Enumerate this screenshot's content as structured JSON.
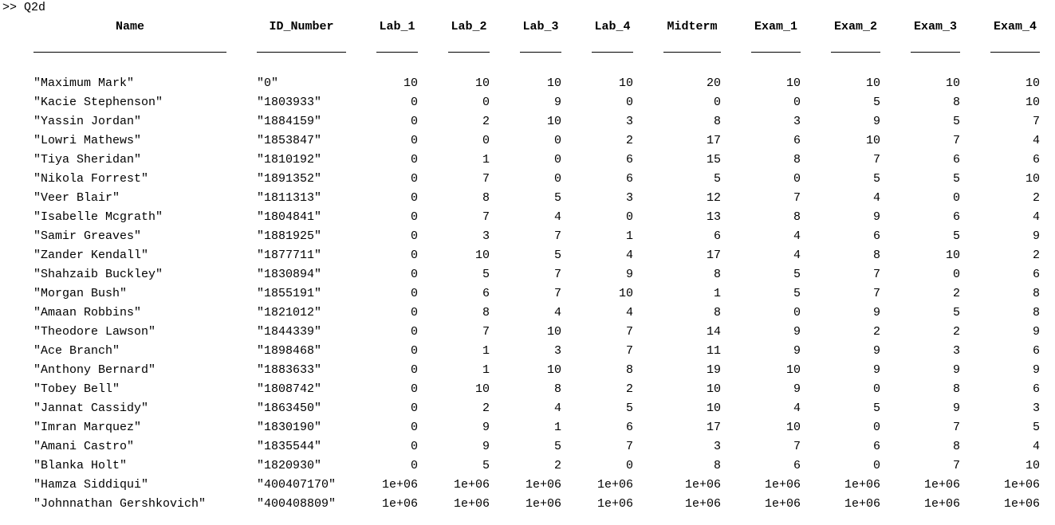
{
  "console": {
    "prompt": ">> ",
    "command": "Q2d"
  },
  "table": {
    "columns": [
      "Name",
      "ID_Number",
      "Lab_1",
      "Lab_2",
      "Lab_3",
      "Lab_4",
      "Midterm",
      "Exam_1",
      "Exam_2",
      "Exam_3",
      "Exam_4"
    ],
    "rows": [
      [
        "\"Maximum Mark\"",
        "\"0\"",
        "10",
        "10",
        "10",
        "10",
        "20",
        "10",
        "10",
        "10",
        "10"
      ],
      [
        "\"Kacie Stephenson\"",
        "\"1803933\"",
        "0",
        "0",
        "9",
        "0",
        "0",
        "0",
        "5",
        "8",
        "10"
      ],
      [
        "\"Yassin Jordan\"",
        "\"1884159\"",
        "0",
        "2",
        "10",
        "3",
        "8",
        "3",
        "9",
        "5",
        "7"
      ],
      [
        "\"Lowri Mathews\"",
        "\"1853847\"",
        "0",
        "0",
        "0",
        "2",
        "17",
        "6",
        "10",
        "7",
        "4"
      ],
      [
        "\"Tiya Sheridan\"",
        "\"1810192\"",
        "0",
        "1",
        "0",
        "6",
        "15",
        "8",
        "7",
        "6",
        "6"
      ],
      [
        "\"Nikola Forrest\"",
        "\"1891352\"",
        "0",
        "7",
        "0",
        "6",
        "5",
        "0",
        "5",
        "5",
        "10"
      ],
      [
        "\"Veer Blair\"",
        "\"1811313\"",
        "0",
        "8",
        "5",
        "3",
        "12",
        "7",
        "4",
        "0",
        "2"
      ],
      [
        "\"Isabelle Mcgrath\"",
        "\"1804841\"",
        "0",
        "7",
        "4",
        "0",
        "13",
        "8",
        "9",
        "6",
        "4"
      ],
      [
        "\"Samir Greaves\"",
        "\"1881925\"",
        "0",
        "3",
        "7",
        "1",
        "6",
        "4",
        "6",
        "5",
        "9"
      ],
      [
        "\"Zander Kendall\"",
        "\"1877711\"",
        "0",
        "10",
        "5",
        "4",
        "17",
        "4",
        "8",
        "10",
        "2"
      ],
      [
        "\"Shahzaib Buckley\"",
        "\"1830894\"",
        "0",
        "5",
        "7",
        "9",
        "8",
        "5",
        "7",
        "0",
        "6"
      ],
      [
        "\"Morgan Bush\"",
        "\"1855191\"",
        "0",
        "6",
        "7",
        "10",
        "1",
        "5",
        "7",
        "2",
        "8"
      ],
      [
        "\"Amaan Robbins\"",
        "\"1821012\"",
        "0",
        "8",
        "4",
        "4",
        "8",
        "0",
        "9",
        "5",
        "8"
      ],
      [
        "\"Theodore Lawson\"",
        "\"1844339\"",
        "0",
        "7",
        "10",
        "7",
        "14",
        "9",
        "2",
        "2",
        "9"
      ],
      [
        "\"Ace Branch\"",
        "\"1898468\"",
        "0",
        "1",
        "3",
        "7",
        "11",
        "9",
        "9",
        "3",
        "6"
      ],
      [
        "\"Anthony Bernard\"",
        "\"1883633\"",
        "0",
        "1",
        "10",
        "8",
        "19",
        "10",
        "9",
        "9",
        "9"
      ],
      [
        "\"Tobey Bell\"",
        "\"1808742\"",
        "0",
        "10",
        "8",
        "2",
        "10",
        "9",
        "0",
        "8",
        "6"
      ],
      [
        "\"Jannat Cassidy\"",
        "\"1863450\"",
        "0",
        "2",
        "4",
        "5",
        "10",
        "4",
        "5",
        "9",
        "3"
      ],
      [
        "\"Imran Marquez\"",
        "\"1830190\"",
        "0",
        "9",
        "1",
        "6",
        "17",
        "10",
        "0",
        "7",
        "5"
      ],
      [
        "\"Amani Castro\"",
        "\"1835544\"",
        "0",
        "9",
        "5",
        "7",
        "3",
        "7",
        "6",
        "8",
        "4"
      ],
      [
        "\"Blanka Holt\"",
        "\"1820930\"",
        "0",
        "5",
        "2",
        "0",
        "8",
        "6",
        "0",
        "7",
        "10"
      ],
      [
        "\"Hamza Siddiqui\"",
        "\"400407170\"",
        "1e+06",
        "1e+06",
        "1e+06",
        "1e+06",
        "1e+06",
        "1e+06",
        "1e+06",
        "1e+06",
        "1e+06"
      ],
      [
        "\"Johnnathan Gershkovich\"",
        "\"400408809\"",
        "1e+06",
        "1e+06",
        "1e+06",
        "1e+06",
        "1e+06",
        "1e+06",
        "1e+06",
        "1e+06",
        "1e+06"
      ]
    ]
  }
}
